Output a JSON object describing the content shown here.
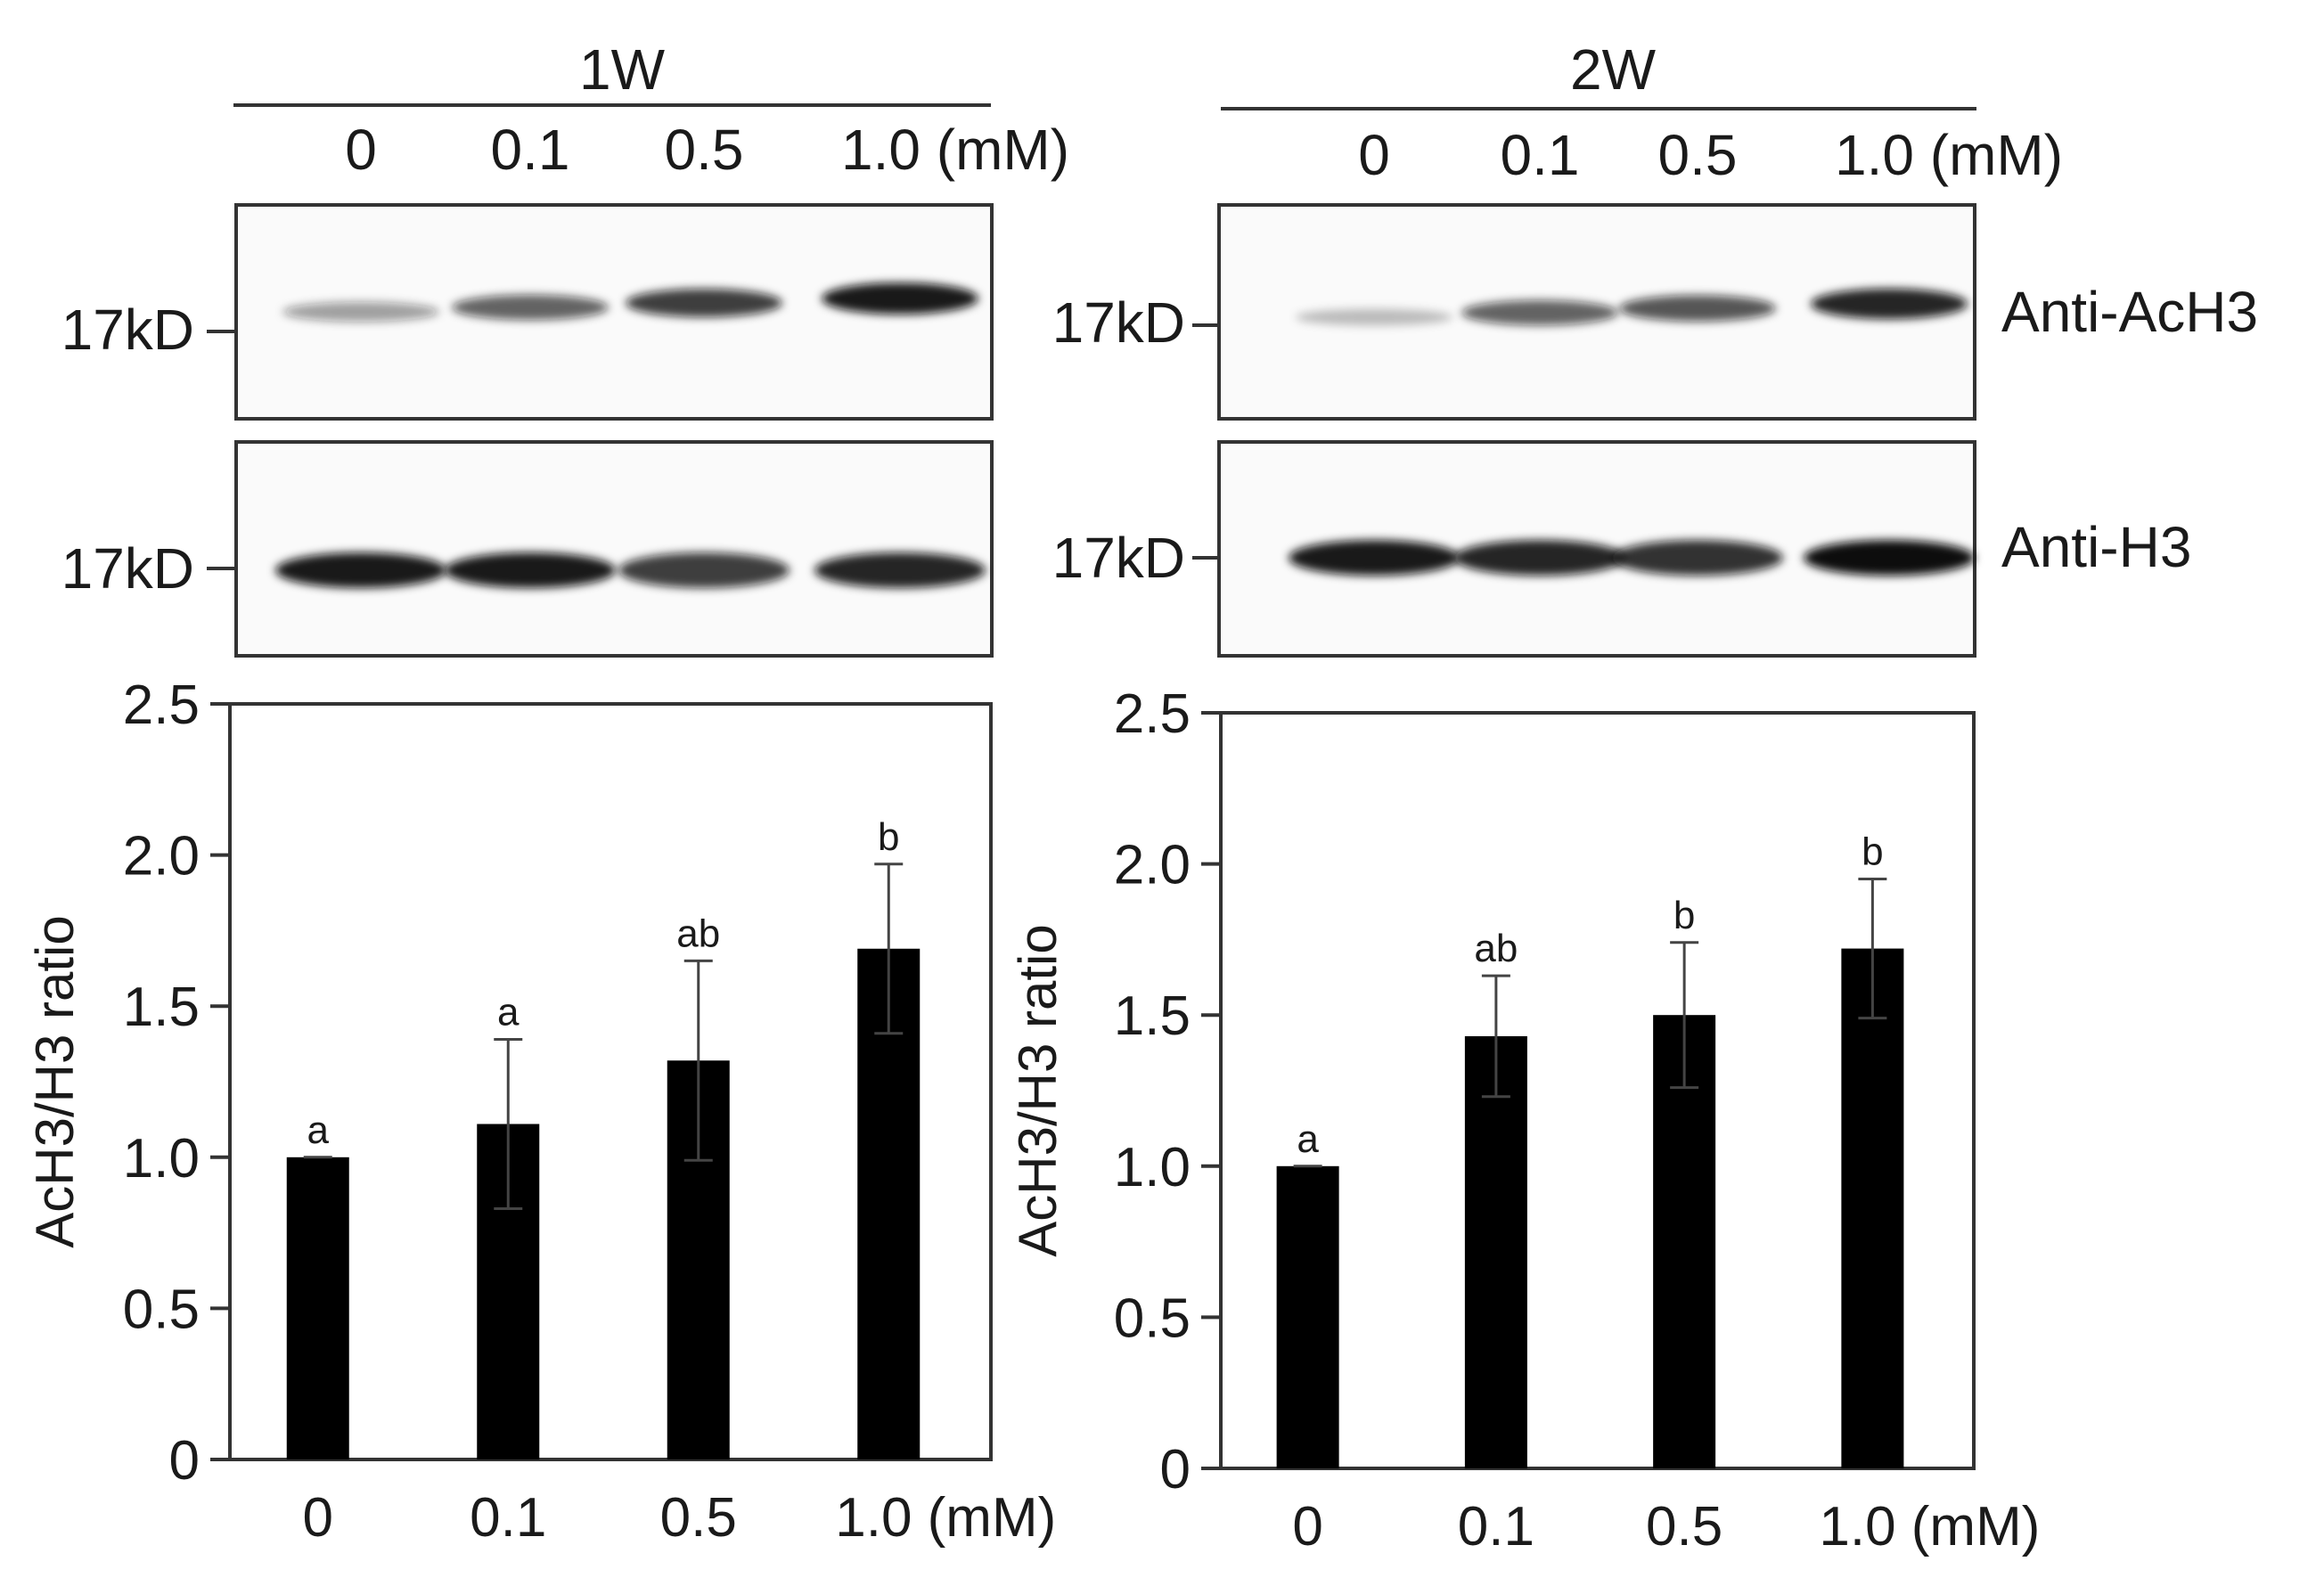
{
  "colors": {
    "bar": "#000000",
    "axis": "#333333",
    "band": "#111111",
    "blot_bg": "#fafafa"
  },
  "panels": [
    {
      "time_label": "1W",
      "lane_labels": [
        "0",
        "0.1",
        "0.5",
        "1.0 (mM)"
      ],
      "blots": [
        {
          "marker": "17kD",
          "antibody": ""
        },
        {
          "marker": "17kD",
          "antibody": ""
        }
      ]
    },
    {
      "time_label": "2W",
      "lane_labels": [
        "0",
        "0.1",
        "0.5",
        "1.0 (mM)"
      ],
      "blots": [
        {
          "marker": "17kD",
          "antibody": "Anti-AcH3"
        },
        {
          "marker": "17kD",
          "antibody": "Anti-H3"
        }
      ]
    }
  ],
  "blot_band_intensity": [
    {
      "acH3": [
        0.35,
        0.6,
        0.75,
        0.9
      ],
      "h3": [
        0.9,
        0.9,
        0.75,
        0.85
      ]
    },
    {
      "acH3": [
        0.2,
        0.6,
        0.65,
        0.85
      ],
      "h3": [
        0.9,
        0.85,
        0.8,
        0.95
      ]
    }
  ],
  "chart_data": [
    {
      "type": "bar",
      "categories": [
        "0",
        "0.1",
        "0.5",
        "1.0 (mM)"
      ],
      "values": [
        1.0,
        1.11,
        1.32,
        1.69
      ],
      "errors": [
        0.0,
        0.28,
        0.33,
        0.28
      ],
      "significance": [
        "a",
        "a",
        "ab",
        "b"
      ],
      "ylabel": "AcH3/H3 ratio",
      "ylim": [
        0,
        2.5
      ],
      "yticks": [
        "0",
        "0.5",
        "1.0",
        "1.5",
        "2.0",
        "2.5"
      ]
    },
    {
      "type": "bar",
      "categories": [
        "0",
        "0.1",
        "0.5",
        "1.0 (mM)"
      ],
      "values": [
        1.0,
        1.43,
        1.5,
        1.72
      ],
      "errors": [
        0.0,
        0.2,
        0.24,
        0.23
      ],
      "significance": [
        "a",
        "ab",
        "b",
        "b"
      ],
      "ylabel": "AcH3/H3 ratio",
      "ylim": [
        0,
        2.5
      ],
      "yticks": [
        "0",
        "0.5",
        "1.0",
        "1.5",
        "2.0",
        "2.5"
      ]
    }
  ]
}
